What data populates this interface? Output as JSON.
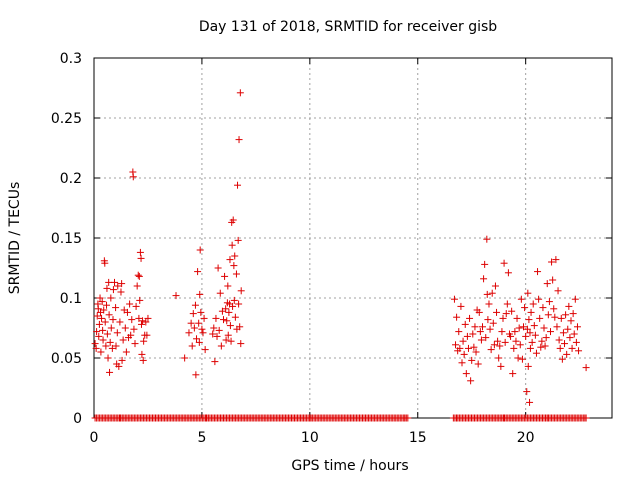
{
  "chart_data": {
    "type": "scatter",
    "title": "Day 131 of 2018, SRMTID for receiver gisb",
    "xlabel": "GPS time / hours",
    "ylabel": "SRMTID / TECUs",
    "xlim": [
      0,
      24
    ],
    "ylim": [
      0,
      0.3
    ],
    "xticks": [
      0,
      5,
      10,
      15,
      20
    ],
    "xtick_labels": [
      "0",
      "5",
      "10",
      "15",
      "20"
    ],
    "yticks": [
      0,
      0.05,
      0.1,
      0.15,
      0.2,
      0.25,
      0.3
    ],
    "ytick_labels": [
      "0",
      "0.05",
      "0.1",
      "0.15",
      "0.2",
      "0.25",
      "0.3"
    ],
    "grid": true,
    "marker": "+",
    "color": "#dd0000",
    "points": [
      [
        0.05,
        0.062
      ],
      [
        0.1,
        0.058
      ],
      [
        0.12,
        0.072
      ],
      [
        0.15,
        0.085
      ],
      [
        0.18,
        0.095
      ],
      [
        0.2,
        0.091
      ],
      [
        0.22,
        0.068
      ],
      [
        0.25,
        0.078
      ],
      [
        0.28,
        0.1
      ],
      [
        0.3,
        0.088
      ],
      [
        0.32,
        0.055
      ],
      [
        0.35,
        0.083
      ],
      [
        0.38,
        0.097
      ],
      [
        0.4,
        0.073
      ],
      [
        0.42,
        0.065
      ],
      [
        0.45,
        0.09
      ],
      [
        0.48,
        0.131
      ],
      [
        0.5,
        0.129
      ],
      [
        0.52,
        0.08
      ],
      [
        0.55,
        0.06
      ],
      [
        0.58,
        0.094
      ],
      [
        0.6,
        0.108
      ],
      [
        0.62,
        0.07
      ],
      [
        0.65,
        0.05
      ],
      [
        0.68,
        0.113
      ],
      [
        0.7,
        0.086
      ],
      [
        0.72,
        0.038
      ],
      [
        0.75,
        0.063
      ],
      [
        0.78,
        0.1
      ],
      [
        0.8,
        0.075
      ],
      [
        0.85,
        0.058
      ],
      [
        0.88,
        0.082
      ],
      [
        0.9,
        0.107
      ],
      [
        0.95,
        0.113
      ],
      [
        1.0,
        0.092
      ],
      [
        1.02,
        0.06
      ],
      [
        1.05,
        0.045
      ],
      [
        1.08,
        0.071
      ],
      [
        1.1,
        0.11
      ],
      [
        1.15,
        0.043
      ],
      [
        1.2,
        0.08
      ],
      [
        1.25,
        0.105
      ],
      [
        1.28,
        0.112
      ],
      [
        1.3,
        0.048
      ],
      [
        1.35,
        0.065
      ],
      [
        1.4,
        0.09
      ],
      [
        1.45,
        0.075
      ],
      [
        1.5,
        0.055
      ],
      [
        1.55,
        0.088
      ],
      [
        1.6,
        0.067
      ],
      [
        1.65,
        0.095
      ],
      [
        1.7,
        0.069
      ],
      [
        1.75,
        0.082
      ],
      [
        1.8,
        0.205
      ],
      [
        1.82,
        0.201
      ],
      [
        1.85,
        0.074
      ],
      [
        1.9,
        0.062
      ],
      [
        1.95,
        0.093
      ],
      [
        2.0,
        0.11
      ],
      [
        2.05,
        0.119
      ],
      [
        2.08,
        0.083
      ],
      [
        2.1,
        0.118
      ],
      [
        2.12,
        0.098
      ],
      [
        2.15,
        0.138
      ],
      [
        2.18,
        0.133
      ],
      [
        2.2,
        0.078
      ],
      [
        2.22,
        0.053
      ],
      [
        2.25,
        0.081
      ],
      [
        2.28,
        0.048
      ],
      [
        2.3,
        0.064
      ],
      [
        2.35,
        0.069
      ],
      [
        2.4,
        0.08
      ],
      [
        2.45,
        0.069
      ],
      [
        2.5,
        0.083
      ],
      [
        3.8,
        0.102
      ],
      [
        4.2,
        0.05
      ],
      [
        4.4,
        0.071
      ],
      [
        4.5,
        0.079
      ],
      [
        4.55,
        0.06
      ],
      [
        4.6,
        0.087
      ],
      [
        4.65,
        0.075
      ],
      [
        4.7,
        0.094
      ],
      [
        4.72,
        0.036
      ],
      [
        4.75,
        0.066
      ],
      [
        4.8,
        0.122
      ],
      [
        4.85,
        0.079
      ],
      [
        4.88,
        0.063
      ],
      [
        4.9,
        0.103
      ],
      [
        4.92,
        0.14
      ],
      [
        4.95,
        0.088
      ],
      [
        5.0,
        0.074
      ],
      [
        5.05,
        0.071
      ],
      [
        5.1,
        0.083
      ],
      [
        5.15,
        0.057
      ],
      [
        5.5,
        0.07
      ],
      [
        5.55,
        0.075
      ],
      [
        5.6,
        0.047
      ],
      [
        5.65,
        0.083
      ],
      [
        5.7,
        0.068
      ],
      [
        5.75,
        0.125
      ],
      [
        5.8,
        0.073
      ],
      [
        5.85,
        0.104
      ],
      [
        5.9,
        0.06
      ],
      [
        5.95,
        0.089
      ],
      [
        6.0,
        0.082
      ],
      [
        6.05,
        0.118
      ],
      [
        6.1,
        0.091
      ],
      [
        6.12,
        0.065
      ],
      [
        6.15,
        0.081
      ],
      [
        6.18,
        0.096
      ],
      [
        6.2,
        0.11
      ],
      [
        6.22,
        0.069
      ],
      [
        6.25,
        0.088
      ],
      [
        6.28,
        0.095
      ],
      [
        6.3,
        0.132
      ],
      [
        6.32,
        0.077
      ],
      [
        6.35,
        0.064
      ],
      [
        6.38,
        0.163
      ],
      [
        6.4,
        0.144
      ],
      [
        6.42,
        0.093
      ],
      [
        6.45,
        0.165
      ],
      [
        6.48,
        0.127
      ],
      [
        6.5,
        0.098
      ],
      [
        6.52,
        0.135
      ],
      [
        6.55,
        0.084
      ],
      [
        6.6,
        0.12
      ],
      [
        6.62,
        0.074
      ],
      [
        6.65,
        0.194
      ],
      [
        6.68,
        0.148
      ],
      [
        6.7,
        0.095
      ],
      [
        6.72,
        0.232
      ],
      [
        6.75,
        0.076
      ],
      [
        6.78,
        0.271
      ],
      [
        6.8,
        0.062
      ],
      [
        6.82,
        0.106
      ],
      [
        16.7,
        0.099
      ],
      [
        16.75,
        0.061
      ],
      [
        16.8,
        0.084
      ],
      [
        16.85,
        0.056
      ],
      [
        16.9,
        0.072
      ],
      [
        16.95,
        0.058
      ],
      [
        17.0,
        0.093
      ],
      [
        17.05,
        0.046
      ],
      [
        17.1,
        0.064
      ],
      [
        17.15,
        0.053
      ],
      [
        17.2,
        0.078
      ],
      [
        17.25,
        0.037
      ],
      [
        17.3,
        0.068
      ],
      [
        17.35,
        0.058
      ],
      [
        17.4,
        0.083
      ],
      [
        17.45,
        0.031
      ],
      [
        17.5,
        0.048
      ],
      [
        17.55,
        0.07
      ],
      [
        17.6,
        0.059
      ],
      [
        17.65,
        0.076
      ],
      [
        17.7,
        0.055
      ],
      [
        17.75,
        0.09
      ],
      [
        17.8,
        0.045
      ],
      [
        17.85,
        0.088
      ],
      [
        17.9,
        0.072
      ],
      [
        17.95,
        0.065
      ],
      [
        18.0,
        0.076
      ],
      [
        18.05,
        0.116
      ],
      [
        18.1,
        0.128
      ],
      [
        18.15,
        0.067
      ],
      [
        18.2,
        0.149
      ],
      [
        18.22,
        0.103
      ],
      [
        18.25,
        0.082
      ],
      [
        18.3,
        0.095
      ],
      [
        18.35,
        0.074
      ],
      [
        18.4,
        0.057
      ],
      [
        18.45,
        0.104
      ],
      [
        18.5,
        0.079
      ],
      [
        18.55,
        0.061
      ],
      [
        18.6,
        0.11
      ],
      [
        18.65,
        0.088
      ],
      [
        18.7,
        0.064
      ],
      [
        18.75,
        0.05
      ],
      [
        18.8,
        0.06
      ],
      [
        18.85,
        0.043
      ],
      [
        18.9,
        0.072
      ],
      [
        18.95,
        0.083
      ],
      [
        19.0,
        0.129
      ],
      [
        19.05,
        0.063
      ],
      [
        19.1,
        0.087
      ],
      [
        19.15,
        0.095
      ],
      [
        19.2,
        0.121
      ],
      [
        19.25,
        0.07
      ],
      [
        19.3,
        0.068
      ],
      [
        19.35,
        0.089
      ],
      [
        19.4,
        0.037
      ],
      [
        19.45,
        0.058
      ],
      [
        19.5,
        0.072
      ],
      [
        19.55,
        0.064
      ],
      [
        19.6,
        0.083
      ],
      [
        19.65,
        0.05
      ],
      [
        19.7,
        0.075
      ],
      [
        19.75,
        0.061
      ],
      [
        19.8,
        0.099
      ],
      [
        19.85,
        0.049
      ],
      [
        19.9,
        0.076
      ],
      [
        19.95,
        0.092
      ],
      [
        20.0,
        0.068
      ],
      [
        20.05,
        0.022
      ],
      [
        20.08,
        0.074
      ],
      [
        20.1,
        0.104
      ],
      [
        20.12,
        0.043
      ],
      [
        20.15,
        0.082
      ],
      [
        20.18,
        0.013
      ],
      [
        20.2,
        0.071
      ],
      [
        20.22,
        0.058
      ],
      [
        20.25,
        0.088
      ],
      [
        20.3,
        0.063
      ],
      [
        20.35,
        0.095
      ],
      [
        20.4,
        0.077
      ],
      [
        20.45,
        0.069
      ],
      [
        20.5,
        0.054
      ],
      [
        20.55,
        0.122
      ],
      [
        20.6,
        0.099
      ],
      [
        20.65,
        0.083
      ],
      [
        20.7,
        0.059
      ],
      [
        20.75,
        0.064
      ],
      [
        20.8,
        0.092
      ],
      [
        20.85,
        0.075
      ],
      [
        20.9,
        0.06
      ],
      [
        20.95,
        0.067
      ],
      [
        21.0,
        0.112
      ],
      [
        21.05,
        0.086
      ],
      [
        21.1,
        0.097
      ],
      [
        21.15,
        0.072
      ],
      [
        21.2,
        0.13
      ],
      [
        21.25,
        0.115
      ],
      [
        21.3,
        0.091
      ],
      [
        21.35,
        0.084
      ],
      [
        21.4,
        0.132
      ],
      [
        21.45,
        0.076
      ],
      [
        21.5,
        0.106
      ],
      [
        21.55,
        0.065
      ],
      [
        21.6,
        0.058
      ],
      [
        21.65,
        0.083
      ],
      [
        21.7,
        0.049
      ],
      [
        21.75,
        0.071
      ],
      [
        21.8,
        0.062
      ],
      [
        21.85,
        0.086
      ],
      [
        21.9,
        0.053
      ],
      [
        21.95,
        0.074
      ],
      [
        22.0,
        0.093
      ],
      [
        22.05,
        0.067
      ],
      [
        22.1,
        0.081
      ],
      [
        22.15,
        0.058
      ],
      [
        22.2,
        0.087
      ],
      [
        22.25,
        0.07
      ],
      [
        22.3,
        0.099
      ],
      [
        22.35,
        0.063
      ],
      [
        22.4,
        0.076
      ],
      [
        22.45,
        0.056
      ],
      [
        22.8,
        0.042
      ],
      [
        1.2,
        0.0
      ],
      [
        5.2,
        0.0
      ],
      [
        10.0,
        0.0
      ],
      [
        14.4,
        0.0
      ],
      [
        16.8,
        0.0
      ],
      [
        19.0,
        0.0
      ],
      [
        21.0,
        0.0
      ],
      [
        22.8,
        0.0
      ]
    ],
    "zero_bands": [
      [
        0.05,
        14.55
      ],
      [
        16.65,
        22.8
      ]
    ]
  }
}
